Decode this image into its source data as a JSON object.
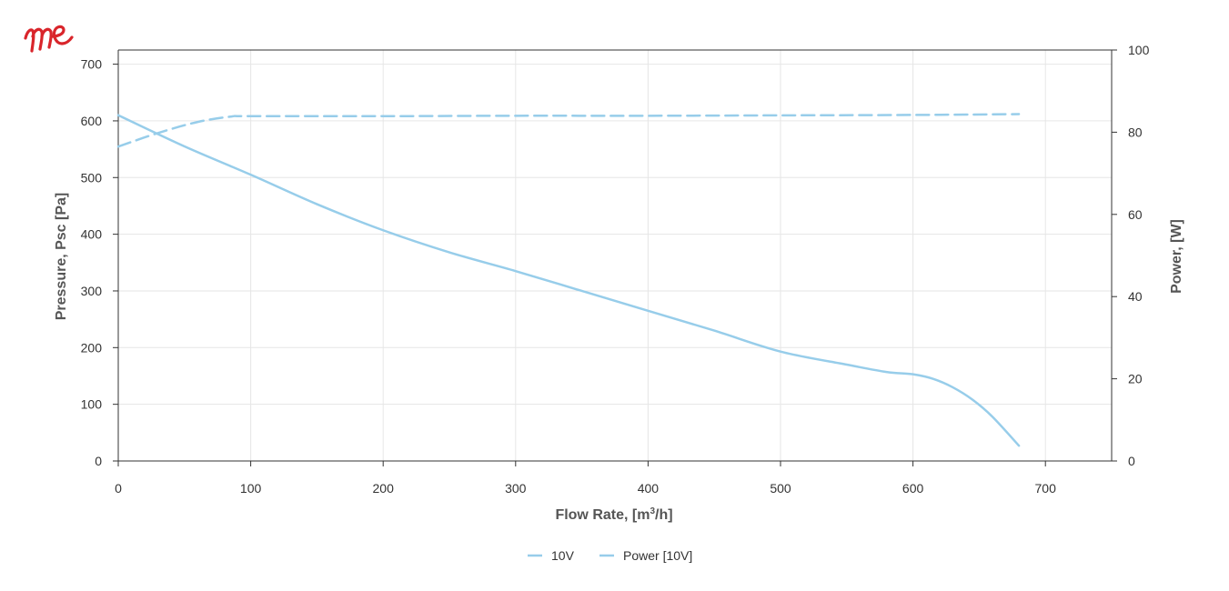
{
  "logo": {
    "text": "me",
    "color": "#d9252b"
  },
  "chart_data": {
    "type": "line",
    "title": "",
    "x_axis": {
      "label_main": "Flow Rate, [m",
      "label_sup": "3",
      "label_tail": "/h]",
      "range": [
        0,
        750
      ],
      "ticks": [
        0,
        100,
        200,
        300,
        400,
        500,
        600,
        700
      ],
      "grid": true
    },
    "y_left": {
      "label": "Pressure, Psc [Pa]",
      "range": [
        0,
        725
      ],
      "ticks": [
        0,
        100,
        200,
        300,
        400,
        500,
        600,
        700
      ],
      "grid": true
    },
    "y_right": {
      "label": "Power, [W]",
      "range": [
        0,
        100
      ],
      "ticks": [
        0,
        20,
        40,
        60,
        80,
        100
      ]
    },
    "series": [
      {
        "name": "10V",
        "axis": "left",
        "style": "solid",
        "color": "#97cdea",
        "x": [
          0,
          50,
          100,
          150,
          200,
          250,
          300,
          350,
          400,
          450,
          500,
          550,
          580,
          600,
          615,
          630,
          645,
          660,
          680
        ],
        "y": [
          610,
          555,
          505,
          453,
          407,
          368,
          335,
          300,
          265,
          230,
          193,
          170,
          157,
          153,
          145,
          130,
          108,
          78,
          27
        ]
      },
      {
        "name": "Power [10V]",
        "axis": "right",
        "style": "dashed",
        "color": "#97cdea",
        "x": [
          0,
          30,
          60,
          85,
          100,
          200,
          300,
          400,
          500,
          600,
          680
        ],
        "y": [
          76.5,
          79.8,
          82.5,
          83.8,
          83.9,
          83.9,
          84.0,
          84.0,
          84.1,
          84.2,
          84.4
        ]
      }
    ],
    "legend": {
      "position": "bottom-center",
      "entries": [
        "10V",
        "Power [10V]"
      ]
    }
  }
}
